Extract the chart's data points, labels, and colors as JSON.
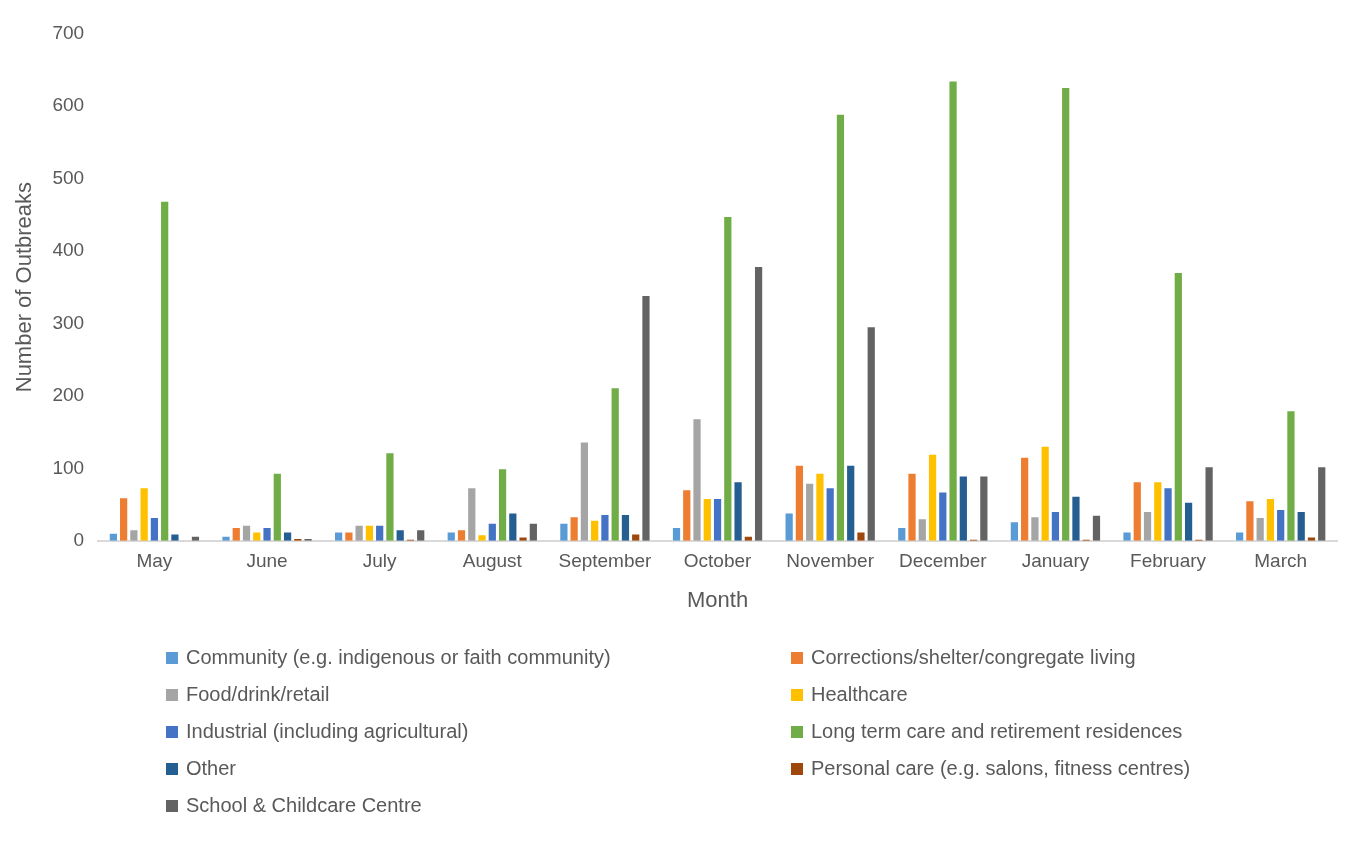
{
  "chart_data": {
    "type": "bar",
    "xlabel": "Month",
    "ylabel": "Number of Outbreaks",
    "categories": [
      "May",
      "June",
      "July",
      "August",
      "September",
      "October",
      "November",
      "December",
      "January",
      "February",
      "March"
    ],
    "ylim": [
      0,
      700
    ],
    "yticks": [
      0,
      100,
      200,
      300,
      400,
      500,
      600,
      700
    ],
    "grid": false,
    "legend": "bottom",
    "series": [
      {
        "name": "Community (e.g. indigenous or faith community)",
        "color": "#5b9bd5",
        "values": [
          11,
          7,
          13,
          13,
          25,
          19,
          39,
          19,
          27,
          13,
          13
        ]
      },
      {
        "name": "Corrections/shelter/congregate living",
        "color": "#ed7d31",
        "values": [
          60,
          19,
          13,
          16,
          34,
          71,
          105,
          94,
          116,
          82,
          56
        ]
      },
      {
        "name": "Food/drink/retail",
        "color": "#a5a5a5",
        "values": [
          16,
          22,
          22,
          74,
          137,
          169,
          80,
          31,
          34,
          41,
          33
        ]
      },
      {
        "name": "Healthcare",
        "color": "#ffc000",
        "values": [
          74,
          13,
          22,
          9,
          29,
          59,
          94,
          120,
          131,
          82,
          59
        ]
      },
      {
        "name": "Industrial (including agricultural)",
        "color": "#4472c4",
        "values": [
          33,
          19,
          22,
          25,
          37,
          59,
          74,
          68,
          41,
          74,
          44
        ]
      },
      {
        "name": "Long term care and retirement residences",
        "color": "#70ad47",
        "values": [
          469,
          94,
          122,
          100,
          212,
          448,
          589,
          635,
          626,
          371,
          180
        ]
      },
      {
        "name": "Other",
        "color": "#255e91",
        "values": [
          10,
          13,
          16,
          39,
          37,
          82,
          105,
          90,
          62,
          54,
          41
        ]
      },
      {
        "name": "Personal care (e.g. salons, fitness centres)",
        "color": "#9e480e",
        "values": [
          0,
          4,
          3,
          6,
          10,
          7,
          13,
          3,
          3,
          3,
          6
        ]
      },
      {
        "name": "School & Childcare Centre",
        "color": "#636363",
        "values": [
          7,
          4,
          16,
          25,
          339,
          379,
          296,
          90,
          36,
          103,
          103
        ]
      }
    ]
  }
}
